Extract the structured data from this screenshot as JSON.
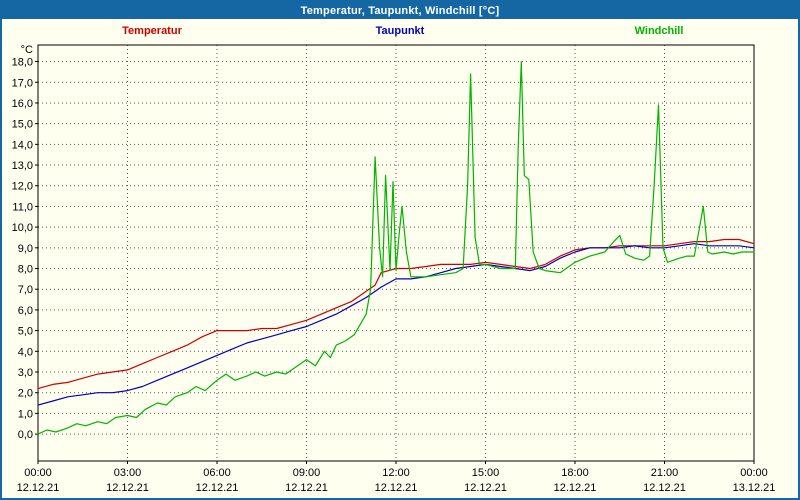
{
  "title": "Temperatur, Taupunkt, Windchill [°C]",
  "legend": [
    {
      "label": "Temperatur",
      "color": "#cc0000"
    },
    {
      "label": "Taupunkt",
      "color": "#0000bb"
    },
    {
      "label": "Windchill",
      "color": "#00b400"
    }
  ],
  "colors": {
    "titlebar": "#1467a2",
    "frame_border": "#1467a2",
    "background": "#fffff0",
    "grid": "#555555",
    "axis": "#000000"
  },
  "chart_data": {
    "type": "line",
    "title": "Temperatur, Taupunkt, Windchill [°C]",
    "ylabel": "°C",
    "xlabel": "",
    "grid": true,
    "legend_position": "top",
    "xlim": [
      0,
      24
    ],
    "ylim": [
      -1.3,
      18.8
    ],
    "y_tick_values": [
      0,
      1,
      2,
      3,
      4,
      5,
      6,
      7,
      8,
      9,
      10,
      11,
      12,
      13,
      14,
      15,
      16,
      17,
      18
    ],
    "y_tick_labels": [
      "0,0",
      "1,0",
      "2,0",
      "3,0",
      "4,0",
      "5,0",
      "6,0",
      "7,0",
      "8,0",
      "9,0",
      "10,0",
      "11,0",
      "12,0",
      "13,0",
      "14,0",
      "15,0",
      "16,0",
      "17,0",
      "18,0"
    ],
    "x_tick_hours": [
      0,
      3,
      6,
      9,
      12,
      15,
      18,
      21,
      24
    ],
    "x_tick_labels": [
      "00:00",
      "03:00",
      "06:00",
      "09:00",
      "12:00",
      "15:00",
      "18:00",
      "21:00",
      "00:00"
    ],
    "x_date_labels": [
      "12.12.21",
      "12.12.21",
      "12.12.21",
      "12.12.21",
      "12.12.21",
      "12.12.21",
      "12.12.21",
      "12.12.21",
      "13.12.21"
    ],
    "series": [
      {
        "name": "Temperatur",
        "color": "#cc0000",
        "points": [
          [
            0,
            2.2
          ],
          [
            0.5,
            2.4
          ],
          [
            1,
            2.5
          ],
          [
            1.5,
            2.7
          ],
          [
            2,
            2.9
          ],
          [
            2.5,
            3.0
          ],
          [
            3,
            3.1
          ],
          [
            3.5,
            3.4
          ],
          [
            4,
            3.7
          ],
          [
            4.5,
            4.0
          ],
          [
            5,
            4.3
          ],
          [
            5.5,
            4.7
          ],
          [
            6,
            5.0
          ],
          [
            6.5,
            5.0
          ],
          [
            7,
            5.0
          ],
          [
            7.5,
            5.1
          ],
          [
            8,
            5.1
          ],
          [
            8.5,
            5.3
          ],
          [
            9,
            5.5
          ],
          [
            9.5,
            5.8
          ],
          [
            10,
            6.1
          ],
          [
            10.5,
            6.4
          ],
          [
            11,
            6.9
          ],
          [
            11.3,
            7.2
          ],
          [
            11.5,
            7.8
          ],
          [
            12,
            8.0
          ],
          [
            12.5,
            8.0
          ],
          [
            13,
            8.1
          ],
          [
            13.5,
            8.2
          ],
          [
            14,
            8.2
          ],
          [
            14.5,
            8.2
          ],
          [
            15,
            8.3
          ],
          [
            15.5,
            8.2
          ],
          [
            16,
            8.1
          ],
          [
            16.5,
            8.0
          ],
          [
            17,
            8.2
          ],
          [
            17.5,
            8.6
          ],
          [
            18,
            8.9
          ],
          [
            18.5,
            9.0
          ],
          [
            19,
            9.0
          ],
          [
            19.5,
            9.1
          ],
          [
            20,
            9.1
          ],
          [
            20.5,
            9.1
          ],
          [
            21,
            9.1
          ],
          [
            21.5,
            9.2
          ],
          [
            22,
            9.3
          ],
          [
            22.5,
            9.3
          ],
          [
            23,
            9.4
          ],
          [
            23.5,
            9.4
          ],
          [
            24,
            9.2
          ]
        ]
      },
      {
        "name": "Taupunkt",
        "color": "#0000bb",
        "points": [
          [
            0,
            1.4
          ],
          [
            0.5,
            1.6
          ],
          [
            1,
            1.8
          ],
          [
            1.5,
            1.9
          ],
          [
            2,
            2.0
          ],
          [
            2.5,
            2.0
          ],
          [
            3,
            2.1
          ],
          [
            3.5,
            2.3
          ],
          [
            4,
            2.6
          ],
          [
            4.5,
            2.9
          ],
          [
            5,
            3.2
          ],
          [
            5.5,
            3.5
          ],
          [
            6,
            3.8
          ],
          [
            6.5,
            4.1
          ],
          [
            7,
            4.4
          ],
          [
            7.5,
            4.6
          ],
          [
            8,
            4.8
          ],
          [
            8.5,
            5.0
          ],
          [
            9,
            5.2
          ],
          [
            9.5,
            5.5
          ],
          [
            10,
            5.8
          ],
          [
            10.5,
            6.2
          ],
          [
            11,
            6.6
          ],
          [
            11.5,
            7.1
          ],
          [
            12,
            7.5
          ],
          [
            12.5,
            7.5
          ],
          [
            13,
            7.6
          ],
          [
            13.5,
            7.8
          ],
          [
            14,
            8.0
          ],
          [
            14.5,
            8.1
          ],
          [
            15,
            8.2
          ],
          [
            15.5,
            8.1
          ],
          [
            16,
            8.0
          ],
          [
            16.5,
            7.9
          ],
          [
            17,
            8.1
          ],
          [
            17.5,
            8.5
          ],
          [
            18,
            8.8
          ],
          [
            18.5,
            9.0
          ],
          [
            19,
            9.0
          ],
          [
            19.5,
            9.0
          ],
          [
            20,
            9.1
          ],
          [
            20.5,
            9.0
          ],
          [
            21,
            9.0
          ],
          [
            21.5,
            9.1
          ],
          [
            22,
            9.2
          ],
          [
            22.5,
            9.1
          ],
          [
            23,
            9.1
          ],
          [
            23.5,
            9.1
          ],
          [
            24,
            9.0
          ]
        ]
      },
      {
        "name": "Windchill",
        "color": "#00b400",
        "points": [
          [
            0,
            0.0
          ],
          [
            0.3,
            0.2
          ],
          [
            0.6,
            0.1
          ],
          [
            1,
            0.3
          ],
          [
            1.3,
            0.5
          ],
          [
            1.6,
            0.4
          ],
          [
            2,
            0.6
          ],
          [
            2.3,
            0.5
          ],
          [
            2.6,
            0.8
          ],
          [
            3,
            0.9
          ],
          [
            3.3,
            0.8
          ],
          [
            3.6,
            1.2
          ],
          [
            4,
            1.5
          ],
          [
            4.3,
            1.4
          ],
          [
            4.6,
            1.8
          ],
          [
            5,
            2.0
          ],
          [
            5.3,
            2.3
          ],
          [
            5.6,
            2.1
          ],
          [
            6,
            2.6
          ],
          [
            6.3,
            2.9
          ],
          [
            6.6,
            2.6
          ],
          [
            7,
            2.8
          ],
          [
            7.3,
            3.0
          ],
          [
            7.6,
            2.8
          ],
          [
            8,
            3.0
          ],
          [
            8.3,
            2.9
          ],
          [
            8.6,
            3.2
          ],
          [
            9,
            3.6
          ],
          [
            9.3,
            3.3
          ],
          [
            9.6,
            4.0
          ],
          [
            9.8,
            3.7
          ],
          [
            10,
            4.3
          ],
          [
            10.3,
            4.5
          ],
          [
            10.6,
            4.8
          ],
          [
            10.8,
            5.3
          ],
          [
            11,
            5.8
          ],
          [
            11.15,
            7.0
          ],
          [
            11.3,
            13.4
          ],
          [
            11.45,
            9.0
          ],
          [
            11.55,
            7.6
          ],
          [
            11.65,
            12.5
          ],
          [
            11.8,
            7.9
          ],
          [
            11.9,
            12.2
          ],
          [
            12,
            7.9
          ],
          [
            12.1,
            9.6
          ],
          [
            12.2,
            11.0
          ],
          [
            12.35,
            8.8
          ],
          [
            12.5,
            7.6
          ],
          [
            12.75,
            7.6
          ],
          [
            13,
            7.6
          ],
          [
            13.5,
            7.7
          ],
          [
            14,
            7.8
          ],
          [
            14.25,
            8.0
          ],
          [
            14.4,
            12.0
          ],
          [
            14.5,
            17.4
          ],
          [
            14.65,
            9.5
          ],
          [
            14.8,
            8.2
          ],
          [
            15,
            8.2
          ],
          [
            15.5,
            8.0
          ],
          [
            16,
            8.0
          ],
          [
            16.1,
            14.0
          ],
          [
            16.2,
            18.0
          ],
          [
            16.3,
            12.5
          ],
          [
            16.45,
            12.3
          ],
          [
            16.6,
            8.8
          ],
          [
            16.8,
            8.0
          ],
          [
            17,
            7.9
          ],
          [
            17.5,
            7.8
          ],
          [
            18,
            8.3
          ],
          [
            18.5,
            8.6
          ],
          [
            19,
            8.8
          ],
          [
            19.3,
            9.3
          ],
          [
            19.5,
            9.6
          ],
          [
            19.7,
            8.7
          ],
          [
            20,
            8.5
          ],
          [
            20.3,
            8.4
          ],
          [
            20.5,
            8.6
          ],
          [
            20.65,
            12.0
          ],
          [
            20.8,
            15.9
          ],
          [
            20.95,
            9.0
          ],
          [
            21.1,
            8.3
          ],
          [
            21.3,
            8.4
          ],
          [
            21.5,
            8.5
          ],
          [
            21.75,
            8.6
          ],
          [
            22,
            8.6
          ],
          [
            22.15,
            9.8
          ],
          [
            22.3,
            11.0
          ],
          [
            22.45,
            8.8
          ],
          [
            22.6,
            8.7
          ],
          [
            23,
            8.8
          ],
          [
            23.3,
            8.7
          ],
          [
            23.6,
            8.8
          ],
          [
            24,
            8.8
          ]
        ]
      }
    ]
  }
}
